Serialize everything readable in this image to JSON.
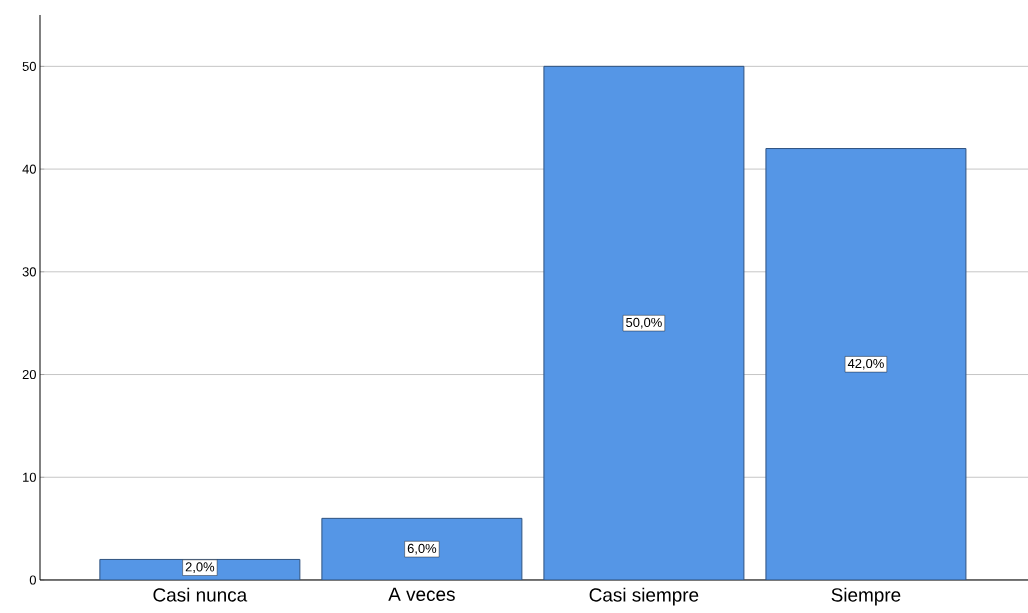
{
  "chart_data": {
    "type": "bar",
    "categories": [
      "Casi nunca",
      "A veces",
      "Casi siempre",
      "Siempre"
    ],
    "values": [
      2,
      6,
      50,
      42
    ],
    "value_labels": [
      "2,0%",
      "6,0%",
      "50,0%",
      "42,0%"
    ],
    "color": "#5596e6",
    "ylim": [
      0,
      55
    ],
    "yticks": [
      0,
      10,
      20,
      30,
      40,
      50
    ],
    "grid": "y"
  }
}
